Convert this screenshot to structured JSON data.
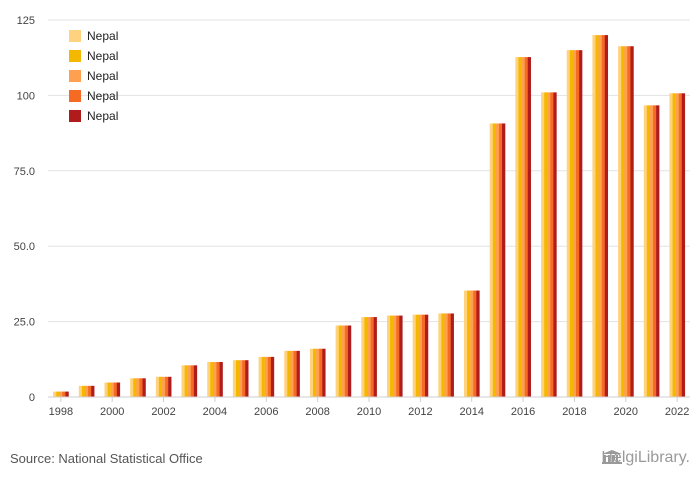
{
  "chart_data": {
    "type": "bar",
    "categories": [
      "1998",
      "1999",
      "2000",
      "2001",
      "2002",
      "2003",
      "2004",
      "2005",
      "2006",
      "2007",
      "2008",
      "2009",
      "2010",
      "2011",
      "2012",
      "2013",
      "2014",
      "2015",
      "2016",
      "2017",
      "2018",
      "2019",
      "2020",
      "2021",
      "2022"
    ],
    "x_tick_labels": [
      "1998",
      "2000",
      "2002",
      "2004",
      "2006",
      "2008",
      "2010",
      "2012",
      "2014",
      "2016",
      "2018",
      "2020",
      "2022"
    ],
    "y_tick_labels": [
      "0",
      "25.0",
      "50.0",
      "75.0",
      "100",
      "125"
    ],
    "ylim": [
      0,
      125
    ],
    "grid": true,
    "legend_position": "top-left",
    "series": [
      {
        "name": "Nepal",
        "color": "#ffd27f",
        "values": [
          1.8,
          3.7,
          4.8,
          6.2,
          6.7,
          10.5,
          11.6,
          12.2,
          13.3,
          15.3,
          16,
          23.7,
          26.5,
          27,
          27.3,
          27.7,
          35.3,
          90.7,
          112.7,
          101,
          115,
          120,
          116.3,
          96.7,
          100.7
        ]
      },
      {
        "name": "Nepal",
        "color": "#f5b800",
        "values": [
          1.8,
          3.7,
          4.8,
          6.2,
          6.7,
          10.5,
          11.6,
          12.2,
          13.3,
          15.3,
          16,
          23.7,
          26.5,
          27,
          27.3,
          27.7,
          35.3,
          90.7,
          112.7,
          101,
          115,
          120,
          116.3,
          96.7,
          100.7
        ]
      },
      {
        "name": "Nepal",
        "color": "#fea04f",
        "values": [
          1.8,
          3.7,
          4.8,
          6.2,
          6.7,
          10.5,
          11.6,
          12.2,
          13.3,
          15.3,
          16,
          23.7,
          26.5,
          27,
          27.3,
          27.7,
          35.3,
          90.7,
          112.7,
          101,
          115,
          120,
          116.3,
          96.7,
          100.7
        ]
      },
      {
        "name": "Nepal",
        "color": "#f56b23",
        "values": [
          1.8,
          3.7,
          4.8,
          6.2,
          6.7,
          10.5,
          11.6,
          12.2,
          13.3,
          15.3,
          16,
          23.7,
          26.5,
          27,
          27.3,
          27.7,
          35.3,
          90.7,
          112.7,
          101,
          115,
          120,
          116.3,
          96.7,
          100.7
        ]
      },
      {
        "name": "Nepal",
        "color": "#b01c1c",
        "values": [
          1.8,
          3.7,
          4.8,
          6.2,
          6.7,
          10.5,
          11.6,
          12.2,
          13.3,
          15.3,
          16,
          23.7,
          26.5,
          27,
          27.3,
          27.7,
          35.3,
          90.7,
          112.7,
          101,
          115,
          120,
          116.3,
          96.7,
          100.7
        ]
      }
    ]
  },
  "footer": {
    "source": "Source: National Statistical Office",
    "brand": "HelgiLibrary."
  },
  "icons": {
    "brand": "library-building-icon"
  }
}
